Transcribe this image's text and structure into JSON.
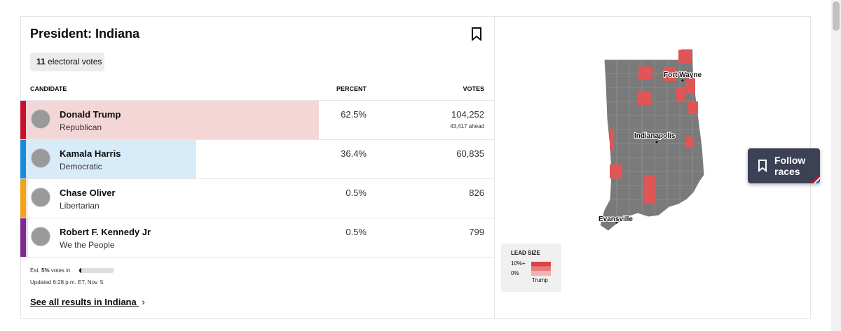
{
  "header": {
    "title": "President: Indiana",
    "badge_count": "11",
    "badge_text": "electoral votes"
  },
  "table": {
    "columns": [
      "CANDIDATE",
      "PERCENT",
      "VOTES"
    ],
    "candidates": [
      {
        "name": "Donald Trump",
        "party": "Republican",
        "percent": 62.5,
        "percent_label": "62.5%",
        "votes": "104,252",
        "note": "43,417 ahead"
      },
      {
        "name": "Kamala Harris",
        "party": "Democratic",
        "percent": 36.4,
        "percent_label": "36.4%",
        "votes": "60,835"
      },
      {
        "name": "Chase Oliver",
        "party": "Libertarian",
        "percent": 0.5,
        "percent_label": "0.5%",
        "votes": "826"
      },
      {
        "name": "Robert F. Kennedy Jr",
        "party": "We the People",
        "percent": 0.5,
        "percent_label": "0.5%",
        "votes": "799"
      }
    ]
  },
  "footer": {
    "reporting_prefix": "Est.",
    "reporting_percent": 5,
    "reporting_label": "5%",
    "reporting_suffix": "votes in",
    "updated": "Updated 6:28 p.m. ET, Nov. 5",
    "link": "See all results in Indiana"
  },
  "map": {
    "cities": [
      "Fort Wayne",
      "Indianapolis",
      "Evansville"
    ],
    "legend": {
      "title": "LEAD SIZE",
      "high": "10%+",
      "low": "0%",
      "candidate": "Trump"
    }
  },
  "follow_button": "Follow races"
}
